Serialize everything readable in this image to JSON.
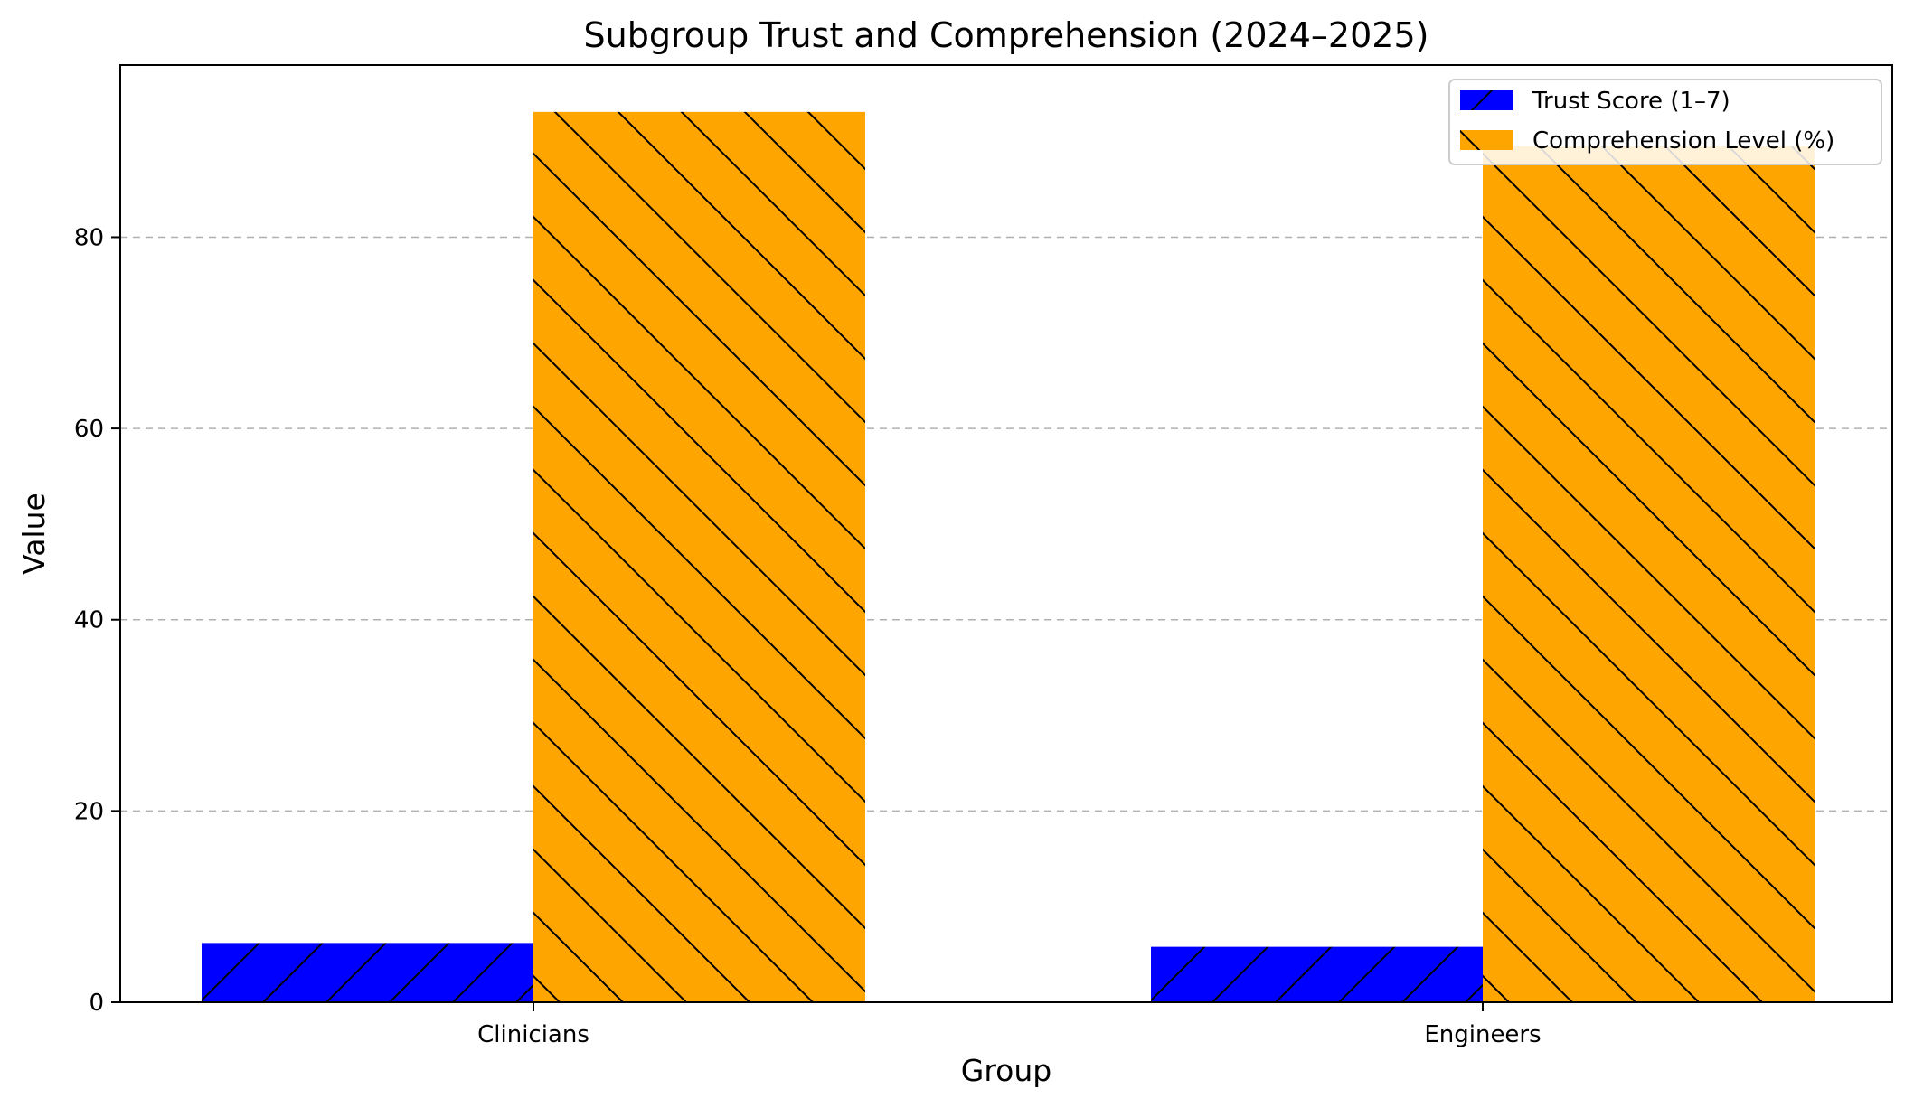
{
  "chart_data": {
    "type": "bar",
    "title": "Subgroup Trust and Comprehension (2024–2025)",
    "xlabel": "Group",
    "ylabel": "Value",
    "categories": [
      "Clinicians",
      "Engineers"
    ],
    "series": [
      {
        "name": "Trust Score (1–7)",
        "values": [
          6.2,
          5.8
        ],
        "color": "#0000ff",
        "hatch": "/"
      },
      {
        "name": "Comprehension Level (%)",
        "values": [
          93.1,
          89.5
        ],
        "color": "#ffa500",
        "hatch": "\\"
      }
    ],
    "ylim": [
      0,
      98
    ],
    "yticks": [
      0,
      20,
      40,
      60,
      80
    ],
    "grid": "y-dashed",
    "legend_position": "top-right"
  }
}
